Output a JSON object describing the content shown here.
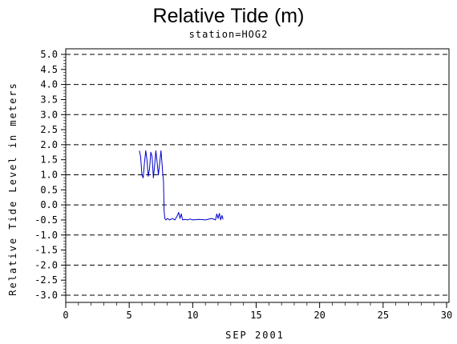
{
  "chart_data": {
    "type": "line",
    "title": "Relative Tide (m)",
    "subtitle": "station=HOG2",
    "xlabel": "SEP 2001",
    "ylabel": "Relative Tide Level in meters",
    "xlim": [
      0,
      30
    ],
    "ylim": [
      -3.0,
      5.0
    ],
    "x_ticks": [
      "0",
      "5",
      "10",
      "15",
      "20",
      "25",
      "30"
    ],
    "y_ticks": [
      "5.0",
      "4.5",
      "4.0",
      "3.5",
      "3.0",
      "2.5",
      "2.0",
      "1.5",
      "1.0",
      "0.5",
      "0.0",
      "-0.5",
      "-1.0",
      "-1.5",
      "-2.0",
      "-2.5",
      "-3.0"
    ],
    "dashed_gridlines_at": [
      5,
      4,
      3,
      2,
      1,
      0,
      -1,
      -2,
      -3
    ],
    "line_color": "#0000cc",
    "series": [
      {
        "x": [
          5.8,
          5.9,
          6.0,
          6.1,
          6.2,
          6.3,
          6.4,
          6.5,
          6.6,
          6.7,
          6.8,
          6.9,
          7.0,
          7.1,
          7.2,
          7.3,
          7.4,
          7.5,
          7.6,
          7.65,
          7.7,
          7.75,
          7.8,
          7.9,
          8.0,
          8.2,
          8.4,
          8.6,
          8.8,
          8.9,
          9.0,
          9.1,
          9.2,
          9.4,
          9.6,
          9.8,
          10.0,
          10.5,
          11.0,
          11.5,
          11.8,
          11.9,
          12.0,
          12.1,
          12.2,
          12.3,
          12.4
        ],
        "y": [
          1.8,
          1.6,
          1.0,
          0.9,
          1.4,
          1.8,
          1.5,
          0.95,
          1.2,
          1.75,
          1.6,
          0.9,
          1.3,
          1.8,
          1.4,
          1.0,
          1.4,
          1.8,
          1.3,
          1.0,
          0.8,
          -0.2,
          -0.45,
          -0.5,
          -0.45,
          -0.5,
          -0.45,
          -0.5,
          -0.35,
          -0.25,
          -0.45,
          -0.3,
          -0.5,
          -0.48,
          -0.5,
          -0.47,
          -0.5,
          -0.48,
          -0.5,
          -0.45,
          -0.5,
          -0.3,
          -0.45,
          -0.28,
          -0.5,
          -0.35,
          -0.48
        ]
      }
    ]
  }
}
